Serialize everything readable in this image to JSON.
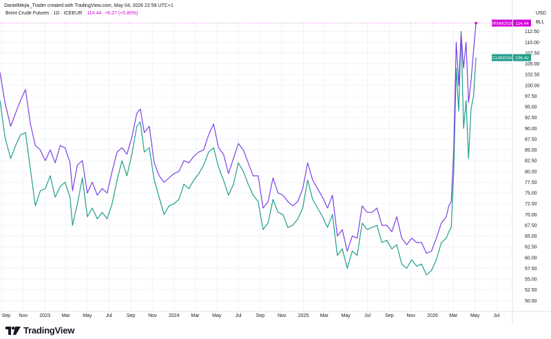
{
  "header": {
    "credit": "DanielMejia_Trader created with TradingView.com, May 04, 2026 22:59 UTC+1",
    "symbol_line": "Brent Crude Futures · 1D · ICEEUR",
    "last_price": "114.44",
    "change": "+6.27 (+5.80%)"
  },
  "axis": {
    "currency": "USD",
    "unit": "BLL"
  },
  "brand": {
    "name": "TradingView",
    "logo_icon": "tradingview-logo-icon"
  },
  "colors": {
    "brent": "#7b3fe4",
    "clm": "#1e9c8a",
    "brent_label": "#d500d8",
    "clm_label": "#1e9c8a",
    "grid": "#f0f3fa"
  },
  "chart_data": {
    "type": "line",
    "title": "Brent Crude Futures · 1D · ICEEUR",
    "xlabel": "",
    "ylabel": "",
    "ylim": [
      47.5,
      115
    ],
    "yticks": [
      50.0,
      52.5,
      55.0,
      57.5,
      60.0,
      62.5,
      65.0,
      67.5,
      70.0,
      72.5,
      75.0,
      77.5,
      80.0,
      82.5,
      85.0,
      87.5,
      90.0,
      92.5,
      95.0,
      97.5,
      100.0,
      102.5,
      105.0,
      107.5,
      110.0,
      112.5
    ],
    "x_tick_labels": [
      "Sep",
      "Nov",
      "2023",
      "Mar",
      "May",
      "Jul",
      "Sep",
      "Nov",
      "2024",
      "Mar",
      "May",
      "Jul",
      "Sep",
      "Nov",
      "2025",
      "Mar",
      "May",
      "Jul",
      "Sep",
      "Nov",
      "2026",
      "Mar",
      "May",
      "Jul"
    ],
    "x_tick_dates": [
      "2022-09-01",
      "2022-11-01",
      "2023-01-01",
      "2023-03-01",
      "2023-05-01",
      "2023-07-01",
      "2023-09-01",
      "2023-11-01",
      "2024-01-01",
      "2024-03-01",
      "2024-05-01",
      "2024-07-01",
      "2024-09-01",
      "2024-11-01",
      "2025-01-01",
      "2025-03-01",
      "2025-05-01",
      "2025-07-01",
      "2025-09-01",
      "2025-11-01",
      "2026-01-01",
      "2026-03-01",
      "2026-05-01",
      "2026-07-01"
    ],
    "x_range": [
      "2022-08-27",
      "2026-08-15"
    ],
    "series": [
      {
        "name": "BRNM2026",
        "last_value": "114.44",
        "x": [
          "2022-08-27",
          "2022-09-10",
          "2022-09-26",
          "2022-10-10",
          "2022-10-24",
          "2022-11-07",
          "2022-11-21",
          "2022-12-05",
          "2022-12-19",
          "2023-01-02",
          "2023-01-16",
          "2023-01-30",
          "2023-02-13",
          "2023-02-27",
          "2023-03-13",
          "2023-03-20",
          "2023-04-03",
          "2023-04-17",
          "2023-05-01",
          "2023-05-15",
          "2023-05-29",
          "2023-06-12",
          "2023-06-26",
          "2023-07-10",
          "2023-07-24",
          "2023-08-07",
          "2023-08-21",
          "2023-09-04",
          "2023-09-18",
          "2023-09-28",
          "2023-10-09",
          "2023-10-23",
          "2023-11-06",
          "2023-11-20",
          "2023-12-04",
          "2023-12-18",
          "2024-01-01",
          "2024-01-15",
          "2024-01-29",
          "2024-02-12",
          "2024-02-26",
          "2024-03-11",
          "2024-03-25",
          "2024-04-08",
          "2024-04-22",
          "2024-05-06",
          "2024-05-20",
          "2024-06-03",
          "2024-06-17",
          "2024-07-01",
          "2024-07-15",
          "2024-07-29",
          "2024-08-12",
          "2024-08-26",
          "2024-09-09",
          "2024-09-23",
          "2024-10-07",
          "2024-10-21",
          "2024-11-04",
          "2024-11-18",
          "2024-12-02",
          "2024-12-16",
          "2024-12-30",
          "2025-01-13",
          "2025-01-27",
          "2025-02-10",
          "2025-02-24",
          "2025-03-10",
          "2025-03-24",
          "2025-04-07",
          "2025-04-21",
          "2025-05-05",
          "2025-05-19",
          "2025-06-02",
          "2025-06-16",
          "2025-06-30",
          "2025-07-14",
          "2025-07-28",
          "2025-08-11",
          "2025-08-25",
          "2025-09-08",
          "2025-09-22",
          "2025-10-06",
          "2025-10-20",
          "2025-11-03",
          "2025-11-17",
          "2025-12-01",
          "2025-12-15",
          "2025-12-29",
          "2026-01-12",
          "2026-01-26",
          "2026-02-09",
          "2026-02-16",
          "2026-02-23",
          "2026-03-02",
          "2026-03-09",
          "2026-03-16",
          "2026-03-23",
          "2026-03-30",
          "2026-04-06",
          "2026-04-13",
          "2026-04-20",
          "2026-04-27",
          "2026-05-04"
        ],
        "values": [
          103.0,
          96.0,
          90.5,
          93.5,
          96.5,
          99.0,
          91.0,
          86.0,
          85.0,
          82.5,
          85.0,
          82.0,
          86.0,
          85.5,
          82.0,
          75.5,
          81.5,
          82.5,
          75.0,
          77.5,
          74.5,
          76.0,
          75.0,
          80.0,
          84.5,
          85.5,
          84.0,
          88.0,
          93.5,
          94.5,
          89.0,
          90.5,
          82.0,
          79.0,
          77.5,
          78.5,
          79.5,
          80.0,
          82.5,
          82.0,
          83.5,
          84.5,
          85.0,
          88.5,
          91.0,
          85.5,
          84.0,
          79.5,
          83.0,
          86.5,
          85.0,
          82.0,
          79.0,
          79.0,
          71.5,
          73.0,
          78.5,
          75.0,
          74.5,
          73.0,
          72.0,
          73.0,
          76.0,
          82.0,
          78.0,
          76.0,
          74.0,
          71.5,
          74.5,
          65.0,
          66.5,
          61.5,
          65.0,
          64.5,
          72.0,
          70.5,
          70.5,
          71.5,
          67.5,
          67.5,
          66.0,
          69.5,
          64.5,
          63.0,
          64.5,
          63.5,
          63.5,
          61.0,
          61.5,
          64.5,
          68.0,
          69.5,
          72.0,
          73.0,
          85.0,
          110.0,
          100.0,
          112.0,
          104.0,
          110.0,
          96.0,
          101.0,
          108.0,
          114.44
        ]
      },
      {
        "name": "CLM2026",
        "last_value": "106.42",
        "x": [
          "2022-08-27",
          "2022-09-10",
          "2022-09-26",
          "2022-10-10",
          "2022-10-24",
          "2022-11-07",
          "2022-11-21",
          "2022-12-05",
          "2022-12-19",
          "2023-01-02",
          "2023-01-16",
          "2023-01-30",
          "2023-02-13",
          "2023-02-27",
          "2023-03-13",
          "2023-03-20",
          "2023-04-03",
          "2023-04-17",
          "2023-05-01",
          "2023-05-15",
          "2023-05-29",
          "2023-06-12",
          "2023-06-26",
          "2023-07-10",
          "2023-07-24",
          "2023-08-07",
          "2023-08-21",
          "2023-09-04",
          "2023-09-18",
          "2023-09-28",
          "2023-10-09",
          "2023-10-23",
          "2023-11-06",
          "2023-11-20",
          "2023-12-04",
          "2023-12-18",
          "2024-01-01",
          "2024-01-15",
          "2024-01-29",
          "2024-02-12",
          "2024-02-26",
          "2024-03-11",
          "2024-03-25",
          "2024-04-08",
          "2024-04-22",
          "2024-05-06",
          "2024-05-20",
          "2024-06-03",
          "2024-06-17",
          "2024-07-01",
          "2024-07-15",
          "2024-07-29",
          "2024-08-12",
          "2024-08-26",
          "2024-09-09",
          "2024-09-23",
          "2024-10-07",
          "2024-10-21",
          "2024-11-04",
          "2024-11-18",
          "2024-12-02",
          "2024-12-16",
          "2024-12-30",
          "2025-01-13",
          "2025-01-27",
          "2025-02-10",
          "2025-02-24",
          "2025-03-10",
          "2025-03-24",
          "2025-04-07",
          "2025-04-21",
          "2025-05-05",
          "2025-05-19",
          "2025-06-02",
          "2025-06-16",
          "2025-06-30",
          "2025-07-14",
          "2025-07-28",
          "2025-08-11",
          "2025-08-25",
          "2025-09-08",
          "2025-09-22",
          "2025-10-06",
          "2025-10-20",
          "2025-11-03",
          "2025-11-17",
          "2025-12-01",
          "2025-12-15",
          "2025-12-29",
          "2026-01-12",
          "2026-01-26",
          "2026-02-09",
          "2026-02-16",
          "2026-02-23",
          "2026-03-02",
          "2026-03-09",
          "2026-03-16",
          "2026-03-23",
          "2026-03-30",
          "2026-04-06",
          "2026-04-13",
          "2026-04-20",
          "2026-04-27",
          "2026-05-04"
        ],
        "values": [
          96.5,
          88.0,
          83.0,
          86.0,
          88.5,
          89.0,
          80.5,
          72.0,
          75.5,
          76.0,
          79.0,
          74.0,
          76.5,
          77.5,
          74.0,
          67.5,
          72.5,
          78.5,
          69.5,
          71.5,
          69.0,
          70.5,
          69.0,
          72.5,
          78.0,
          82.5,
          79.0,
          84.0,
          90.5,
          91.5,
          84.5,
          85.5,
          78.0,
          74.0,
          70.0,
          72.0,
          72.5,
          73.5,
          77.0,
          76.0,
          78.0,
          79.5,
          81.5,
          84.5,
          85.5,
          81.0,
          78.0,
          74.5,
          77.0,
          82.0,
          80.0,
          77.0,
          74.5,
          73.0,
          66.5,
          68.0,
          73.5,
          70.5,
          70.0,
          67.0,
          67.5,
          69.0,
          71.5,
          78.0,
          73.5,
          71.5,
          69.5,
          67.0,
          70.0,
          60.5,
          62.0,
          57.5,
          61.5,
          60.5,
          68.0,
          66.5,
          67.0,
          67.5,
          63.5,
          64.0,
          62.0,
          63.0,
          58.5,
          57.5,
          59.5,
          58.0,
          58.5,
          56.0,
          57.0,
          59.5,
          63.5,
          64.5,
          66.0,
          67.0,
          80.0,
          104.0,
          94.0,
          112.5,
          90.0,
          96.5,
          83.0,
          94.5,
          97.5,
          106.42
        ]
      }
    ],
    "grid": true,
    "legend": "right-edge price labels"
  }
}
